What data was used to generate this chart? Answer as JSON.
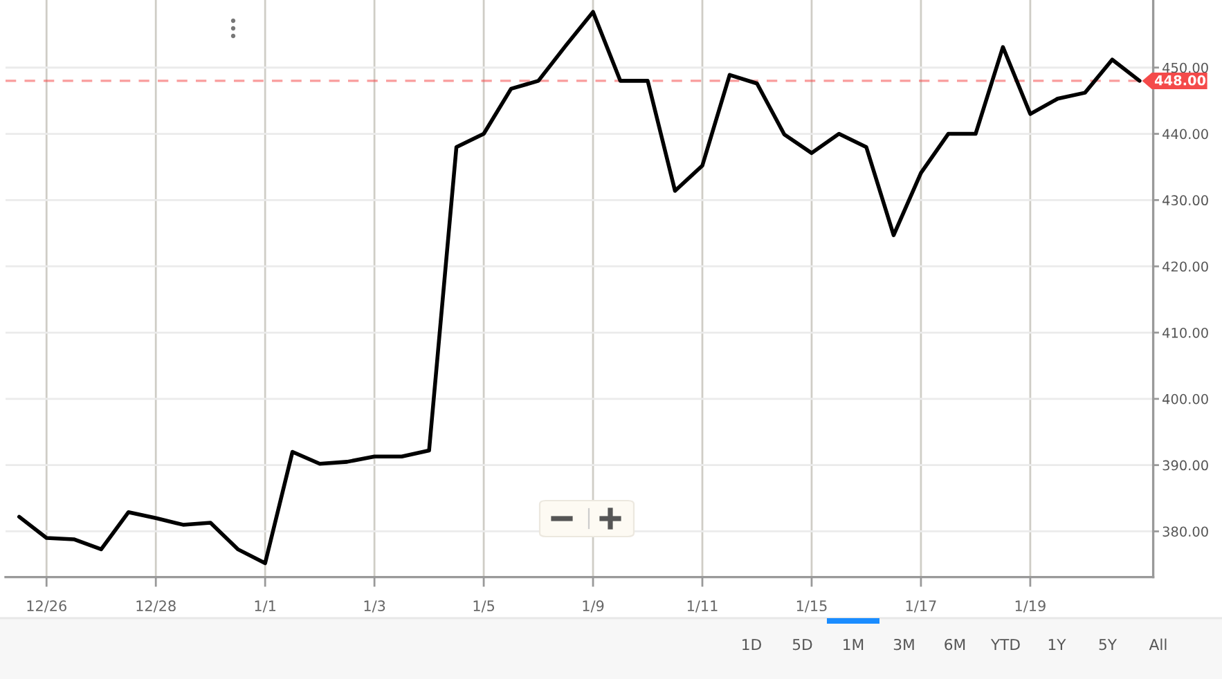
{
  "chart_data": {
    "type": "line",
    "categories": [
      null,
      "12/26",
      null,
      null,
      null,
      "12/28",
      null,
      null,
      null,
      "1/1",
      null,
      null,
      null,
      "1/3",
      null,
      null,
      null,
      "1/5",
      null,
      null,
      null,
      "1/9",
      null,
      null,
      null,
      "1/11",
      null,
      null,
      null,
      "1/15",
      null,
      null,
      null,
      "1/17",
      null,
      null,
      null,
      "1/19",
      null,
      null,
      null,
      null
    ],
    "values": [
      382.2,
      379.0,
      378.8,
      377.3,
      382.9,
      382.0,
      381.0,
      381.3,
      377.3,
      375.2,
      392.0,
      390.2,
      390.5,
      391.3,
      391.3,
      392.2,
      438.0,
      440.0,
      446.8,
      448.0,
      453.3,
      458.4,
      448.0,
      448.0,
      431.4,
      435.2,
      448.9,
      447.6,
      439.9,
      437.1,
      440.0,
      438.0,
      424.7,
      434.1,
      440.0,
      440.0,
      453.1,
      443.0,
      445.3,
      446.2,
      451.2,
      448.0
    ],
    "color": "#000000",
    "ylim": [
      373.1,
      460.2
    ],
    "yticks": [
      {
        "value": 380,
        "label": "380.00"
      },
      {
        "value": 390,
        "label": "390.00"
      },
      {
        "value": 400,
        "label": "400.00"
      },
      {
        "value": 410,
        "label": "410.00"
      },
      {
        "value": 420,
        "label": "420.00"
      },
      {
        "value": 430,
        "label": "430.00"
      },
      {
        "value": 440,
        "label": "440.00"
      },
      {
        "value": 450,
        "label": "450.00"
      }
    ],
    "grid": true,
    "marker": "none",
    "line_style": "solid",
    "ref_lines": [
      {
        "axis": "y",
        "value": 448,
        "label": "448.00",
        "color": "#f44a4a",
        "line_style": "dashed"
      }
    ],
    "annotations": [
      "1D",
      "5D",
      "1M",
      "3M",
      "6M",
      "YTD",
      "1Y",
      "5Y",
      "All"
    ]
  }
}
